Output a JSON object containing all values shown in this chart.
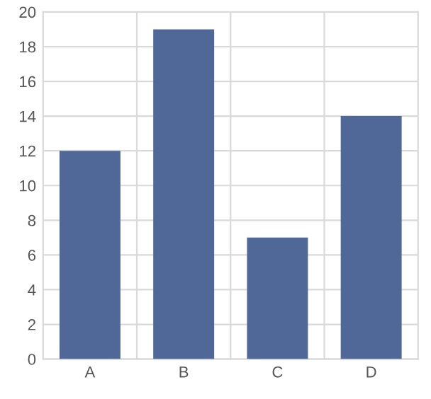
{
  "chart_data": {
    "type": "bar",
    "categories": [
      "A",
      "B",
      "C",
      "D"
    ],
    "values": [
      12,
      19,
      7,
      14
    ],
    "color": "#4f6898",
    "ylim": [
      0,
      20
    ],
    "yticks": [
      0,
      2,
      4,
      6,
      8,
      10,
      12,
      14,
      16,
      18,
      20
    ],
    "grid": true
  }
}
